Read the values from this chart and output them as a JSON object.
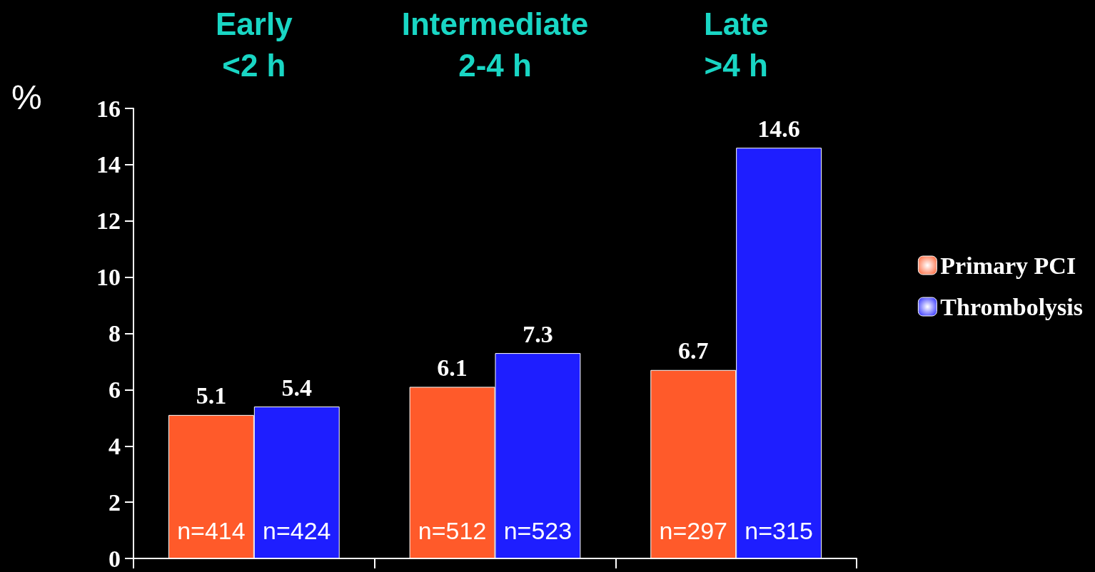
{
  "chart_data": {
    "type": "bar",
    "ylabel": "%",
    "categories": [
      "Early\n<2 h",
      "Intermediate\n2-4 h",
      "Late\n>4 h"
    ],
    "series": [
      {
        "name": "Primary PCI",
        "color": "#ff5a2a",
        "values": [
          5.1,
          6.1,
          6.7
        ]
      },
      {
        "name": "Thrombolysis",
        "color": "#1e1eff",
        "values": [
          5.4,
          7.3,
          14.6
        ]
      }
    ],
    "ylim": [
      0,
      16
    ],
    "yticks": [
      0,
      2,
      4,
      6,
      8,
      10,
      12,
      14,
      16
    ],
    "data_labels": true,
    "legend": "right",
    "grid": false,
    "annotations": [
      {
        "text": "n=414",
        "x": "Early\n<2 h",
        "y": 1
      },
      {
        "text": "n=424",
        "x": "Early\n<2 h",
        "y": 1
      },
      {
        "text": "n=512",
        "x": "Intermediate\n2-4 h",
        "y": 1
      },
      {
        "text": "n=523",
        "x": "Intermediate\n2-4 h",
        "y": 1
      },
      {
        "text": "n=297",
        "x": "Late\n>4 h",
        "y": 1
      },
      {
        "text": "n=315",
        "x": "Late\n>4 h",
        "y": 1
      }
    ]
  }
}
